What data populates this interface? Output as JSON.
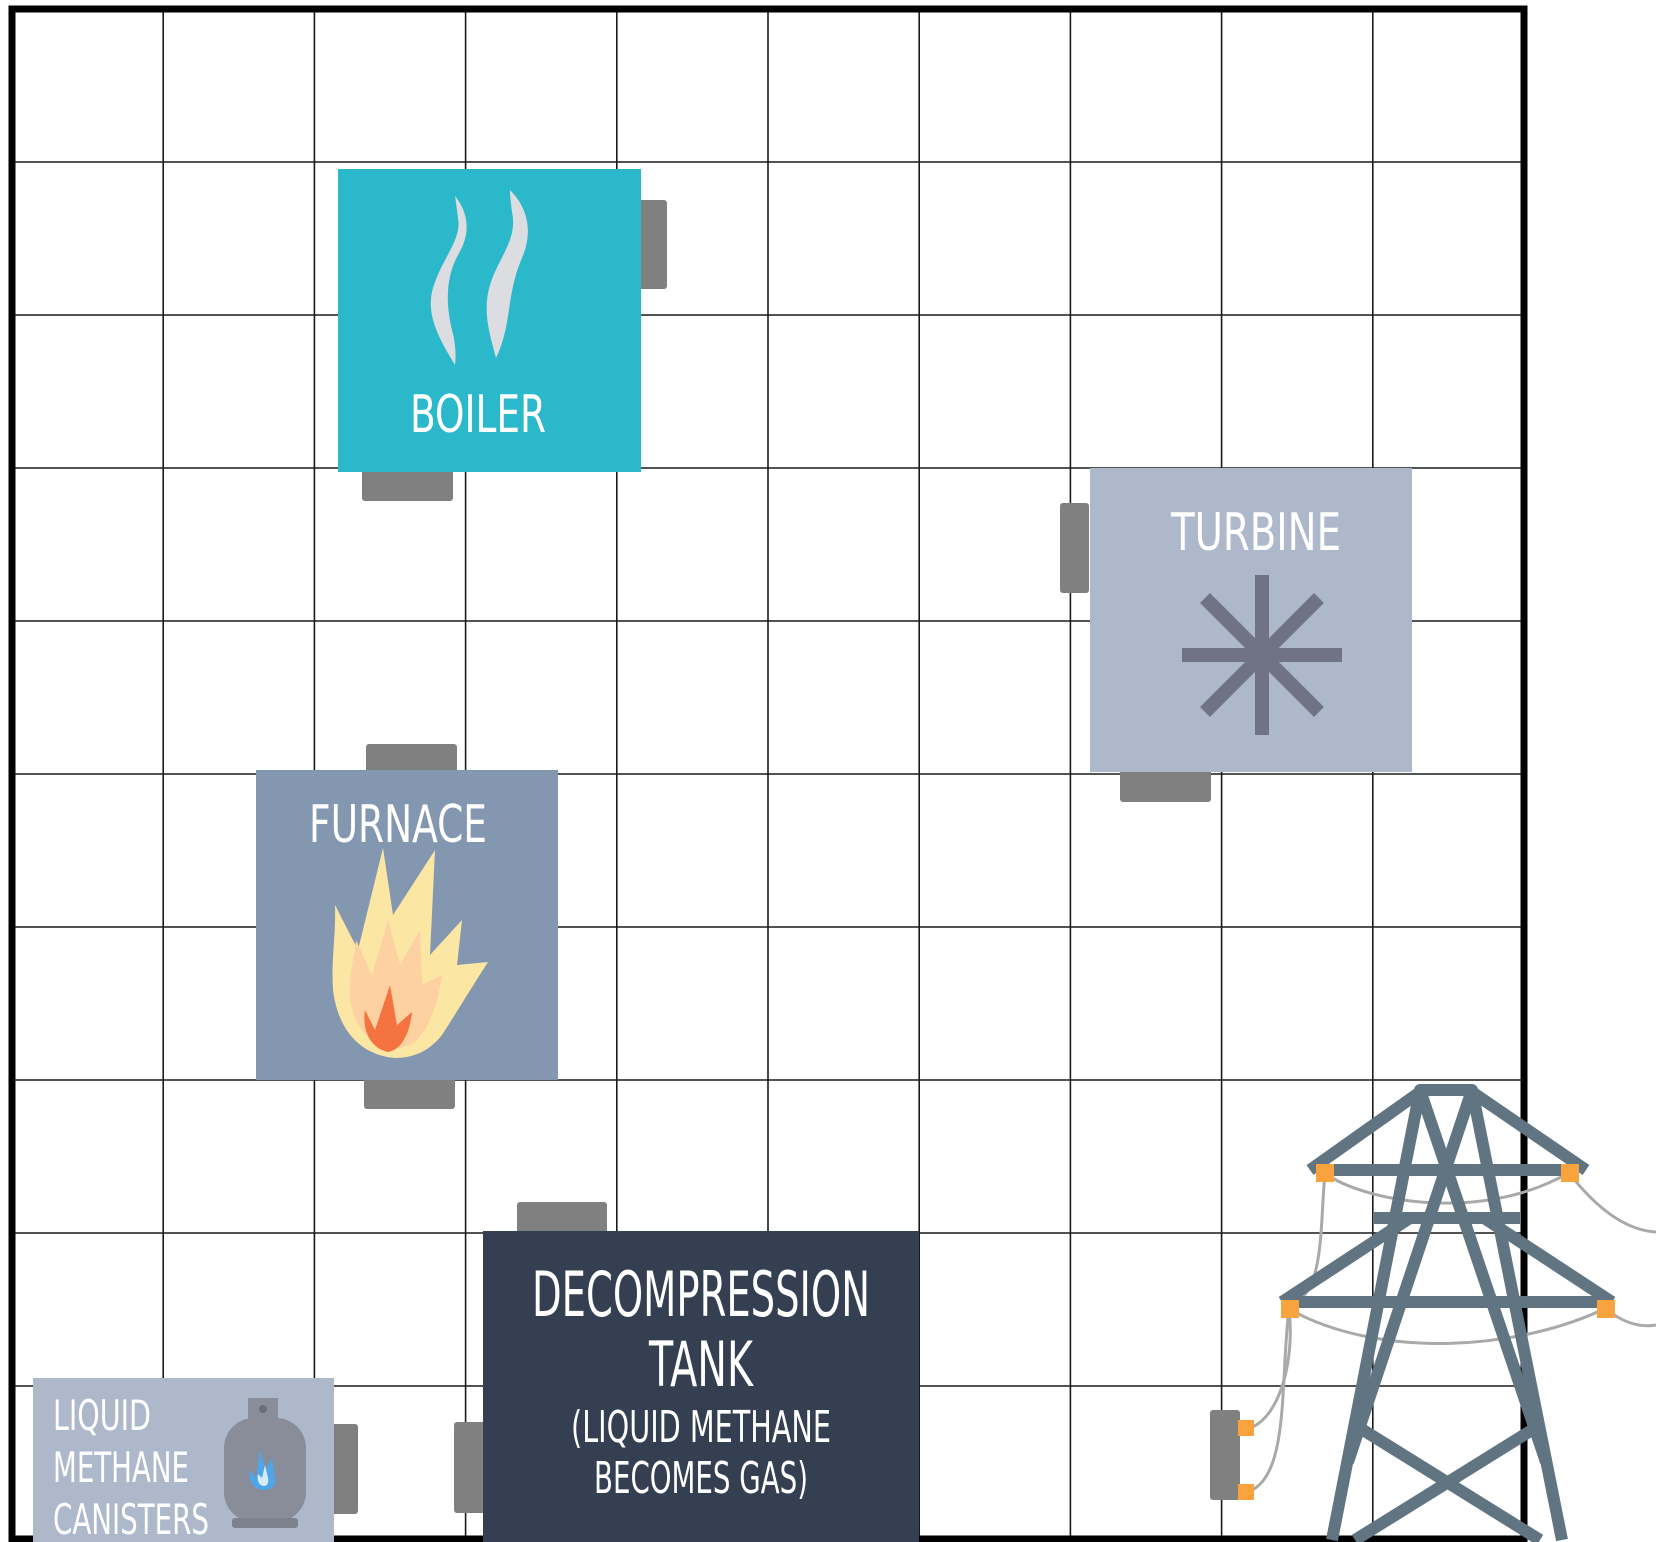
{
  "colors": {
    "grid_line": "#1a1a1a",
    "border": "#000000",
    "connector": "#808080",
    "boiler_fill": "#2bb8cb",
    "boiler_steam": "#dcdde0",
    "turbine_fill": "#aeb8cb",
    "turbine_icon": "#6f7385",
    "furnace_fill": "#8497b1",
    "flame_outer": "#fbe6a4",
    "flame_mid": "#fdd1a2",
    "flame_inner": "#f57341",
    "tank_fill": "#343f51",
    "canisters_fill": "#aeb8cb",
    "canister_icon": "#898d9a",
    "canister_flame": "#4ea6e8",
    "pylon": "#607482",
    "insulator": "#f8a33d",
    "wire": "#a9a9a9",
    "label_text": "#ffffff"
  },
  "grid": {
    "columns": 10,
    "rows": 10
  },
  "components": {
    "boiler": {
      "label": "BOILER",
      "icon": "steam-icon"
    },
    "turbine": {
      "label": "TURBINE",
      "icon": "asterisk-fan-icon"
    },
    "furnace": {
      "label": "FURNACE",
      "icon": "flame-icon"
    },
    "decompression_tank": {
      "title_line1": "DECOMPRESSION",
      "title_line2": "TANK",
      "note_line1": "(LIQUID METHANE",
      "note_line2": "BECOMES GAS)"
    },
    "canisters": {
      "label_line1": "LIQUID",
      "label_line2": "METHANE",
      "label_line3": "CANISTERS",
      "icon": "gas-canister-icon"
    },
    "pylon": {
      "icon": "power-pylon-icon"
    }
  }
}
